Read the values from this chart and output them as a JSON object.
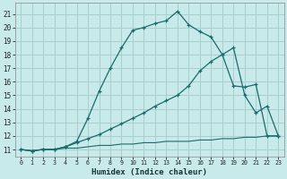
{
  "title": "",
  "xlabel": "Humidex (Indice chaleur)",
  "bg_color": "#c8eaea",
  "grid_color": "#a8cece",
  "line_color": "#1a6b6b",
  "xlim": [
    -0.5,
    23.5
  ],
  "ylim": [
    10.5,
    21.8
  ],
  "yticks": [
    11,
    12,
    13,
    14,
    15,
    16,
    17,
    18,
    19,
    20,
    21
  ],
  "xticks": [
    0,
    1,
    2,
    3,
    4,
    5,
    6,
    7,
    8,
    9,
    10,
    11,
    12,
    13,
    14,
    15,
    16,
    17,
    18,
    19,
    20,
    21,
    22,
    23
  ],
  "series_flat_x": [
    0,
    1,
    2,
    3,
    4,
    5,
    6,
    7,
    8,
    9,
    10,
    11,
    12,
    13,
    14,
    15,
    16,
    17,
    18,
    19,
    20,
    21,
    22,
    23
  ],
  "series_flat_y": [
    11.0,
    10.9,
    11.0,
    11.0,
    11.1,
    11.1,
    11.2,
    11.3,
    11.3,
    11.4,
    11.4,
    11.5,
    11.5,
    11.6,
    11.6,
    11.6,
    11.7,
    11.7,
    11.8,
    11.8,
    11.9,
    11.9,
    12.0,
    12.0
  ],
  "series_mid_x": [
    0,
    1,
    2,
    3,
    4,
    5,
    6,
    7,
    8,
    9,
    10,
    11,
    12,
    13,
    14,
    15,
    16,
    17,
    18,
    19,
    20,
    21,
    22,
    23
  ],
  "series_mid_y": [
    11.0,
    10.9,
    11.0,
    11.0,
    11.2,
    11.5,
    11.8,
    12.1,
    12.5,
    12.9,
    13.3,
    13.7,
    14.2,
    14.6,
    15.0,
    15.7,
    16.8,
    17.5,
    18.0,
    18.5,
    15.0,
    13.7,
    14.2,
    12.0
  ],
  "series_top_x": [
    0,
    1,
    2,
    3,
    4,
    5,
    6,
    7,
    8,
    9,
    10,
    11,
    12,
    13,
    14,
    15,
    16,
    17,
    18,
    19,
    20,
    21,
    22,
    23
  ],
  "series_top_y": [
    11.0,
    10.9,
    11.0,
    11.0,
    11.2,
    11.6,
    13.3,
    15.3,
    17.0,
    18.5,
    19.8,
    20.0,
    20.3,
    20.5,
    21.2,
    20.2,
    19.7,
    19.3,
    18.0,
    15.7,
    15.6,
    15.8,
    12.0,
    12.0
  ]
}
